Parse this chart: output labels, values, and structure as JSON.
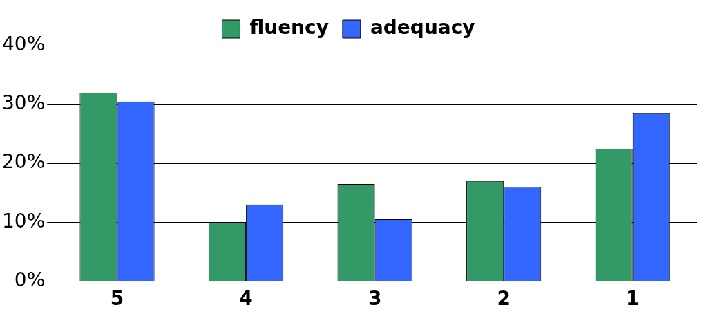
{
  "chart_data": {
    "type": "bar",
    "categories": [
      "5",
      "4",
      "3",
      "2",
      "1"
    ],
    "series": [
      {
        "name": "fluency",
        "color": "#339966",
        "values": [
          32,
          10,
          16.5,
          17,
          22.5
        ]
      },
      {
        "name": "adequacy",
        "color": "#3366ff",
        "values": [
          30.5,
          13,
          10.5,
          16,
          28.5
        ]
      }
    ],
    "ylim": [
      0,
      40
    ],
    "yticks": [
      {
        "value": 0,
        "label": "0%"
      },
      {
        "value": 10,
        "label": "10%"
      },
      {
        "value": 20,
        "label": "20%"
      },
      {
        "value": 30,
        "label": "30%"
      },
      {
        "value": 40,
        "label": "40%"
      }
    ],
    "grid": "y",
    "legend": "top"
  }
}
